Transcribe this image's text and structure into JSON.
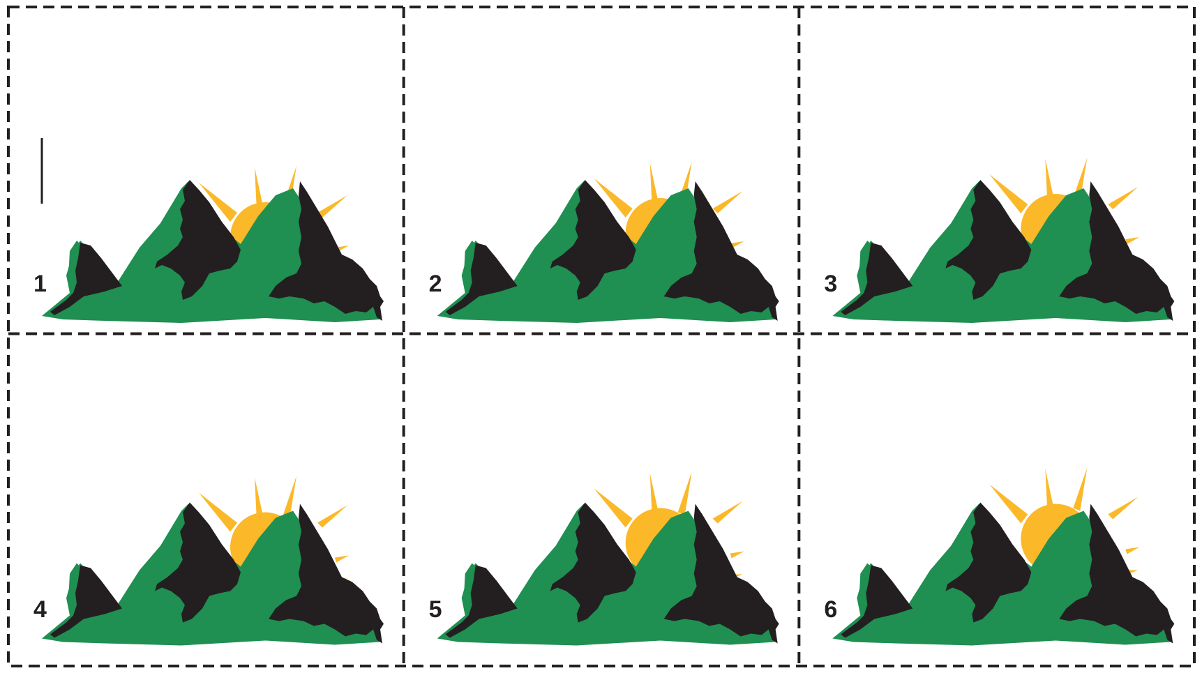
{
  "colors": {
    "mountain_green": "#1f8f52",
    "mountain_black": "#231f20",
    "sun_yellow": "#fbb829",
    "border": "#231f20",
    "background": "#ffffff"
  },
  "frames": [
    {
      "label": "1",
      "sun_rise": 0.0,
      "cursor": true
    },
    {
      "label": "2",
      "sun_rise": 0.2,
      "cursor": false
    },
    {
      "label": "3",
      "sun_rise": 0.4,
      "cursor": false
    },
    {
      "label": "4",
      "sun_rise": 0.6,
      "cursor": false
    },
    {
      "label": "5",
      "sun_rise": 0.8,
      "cursor": false
    },
    {
      "label": "6",
      "sun_rise": 1.0,
      "cursor": false
    }
  ],
  "icons": {
    "scene": "mountains-sunrise-icon",
    "cursor": "text-cursor-icon"
  }
}
